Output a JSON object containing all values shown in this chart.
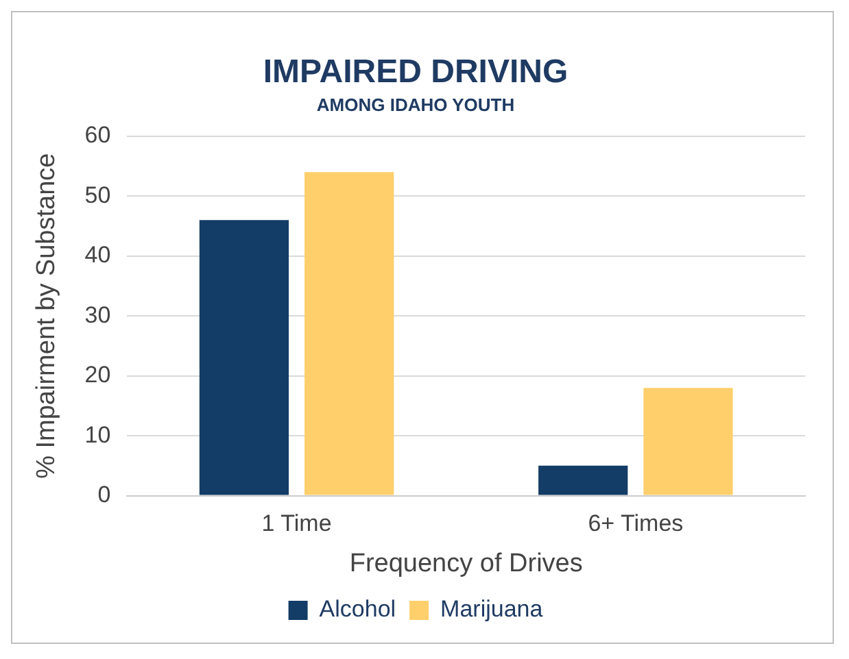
{
  "chart_data": {
    "type": "bar",
    "title": "IMPAIRED DRIVING",
    "subtitle": "AMONG IDAHO YOUTH",
    "xlabel": "Frequency of Drives",
    "ylabel": "% Impairment by Substance",
    "categories": [
      "1 Time",
      "6+ Times"
    ],
    "series": [
      {
        "name": "Alcohol",
        "color": "#133c66",
        "values": [
          46,
          5
        ]
      },
      {
        "name": "Marijuana",
        "color": "#ffcf6b",
        "values": [
          54,
          18
        ]
      }
    ],
    "ylim": [
      0,
      60
    ],
    "yticks": [
      0,
      10,
      20,
      30,
      40,
      50,
      60
    ],
    "grid": "y",
    "legend": "bottom"
  }
}
